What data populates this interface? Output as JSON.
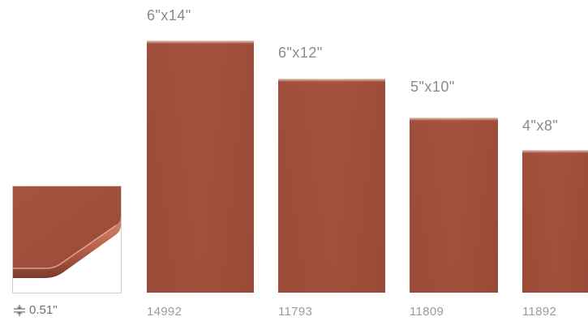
{
  "tiles": [
    {
      "size": "6\"x14\"",
      "code": "14992"
    },
    {
      "size": "6\"x12\"",
      "code": "11793"
    },
    {
      "size": "5\"x10\"",
      "code": "11809"
    },
    {
      "size": "4\"x8\"",
      "code": "11892"
    }
  ],
  "thickness": {
    "icon": "thickness-icon",
    "value": "0.51\""
  },
  "colors": {
    "tile": "#a0503d",
    "label": "#8a8a8a"
  }
}
